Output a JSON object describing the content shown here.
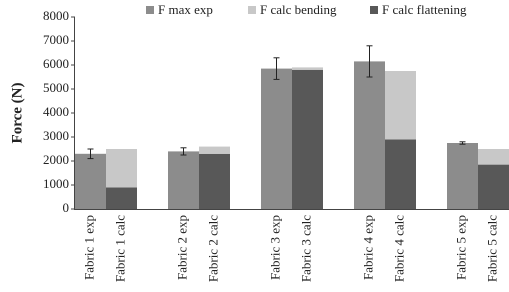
{
  "chart_data": {
    "type": "stacked_bar",
    "y_label": "Force (N)",
    "categories": [
      "Fabric 1 exp",
      "Fabric 1 calc",
      "Fabric 2 exp",
      "Fabric 2 calc",
      "Fabric 3 exp",
      "Fabric 3 calc",
      "Fabric 4 exp",
      "Fabric 4 calc",
      "Fabric 5 exp",
      "Fabric 5 calc"
    ],
    "series": [
      {
        "name": "F max exp",
        "color": "#8c8c8c",
        "values": [
          2300,
          null,
          2400,
          null,
          5850,
          null,
          6150,
          null,
          2750,
          null
        ],
        "errors": [
          200,
          null,
          150,
          null,
          450,
          null,
          650,
          null,
          50,
          null
        ]
      },
      {
        "name": "F calc bending",
        "color": "#c8c8c8",
        "values": [
          null,
          1600,
          null,
          300,
          null,
          100,
          null,
          2850,
          null,
          650
        ]
      },
      {
        "name": "F calc flattening",
        "color": "#585858",
        "values": [
          null,
          900,
          null,
          2300,
          null,
          5800,
          null,
          2900,
          null,
          1850
        ]
      }
    ],
    "stack_order": [
      "F calc flattening",
      "F calc bending"
    ],
    "ylim": [
      0,
      8000
    ],
    "yticks": [
      0,
      1000,
      2000,
      3000,
      4000,
      5000,
      6000,
      7000,
      8000
    ],
    "grid": false
  }
}
